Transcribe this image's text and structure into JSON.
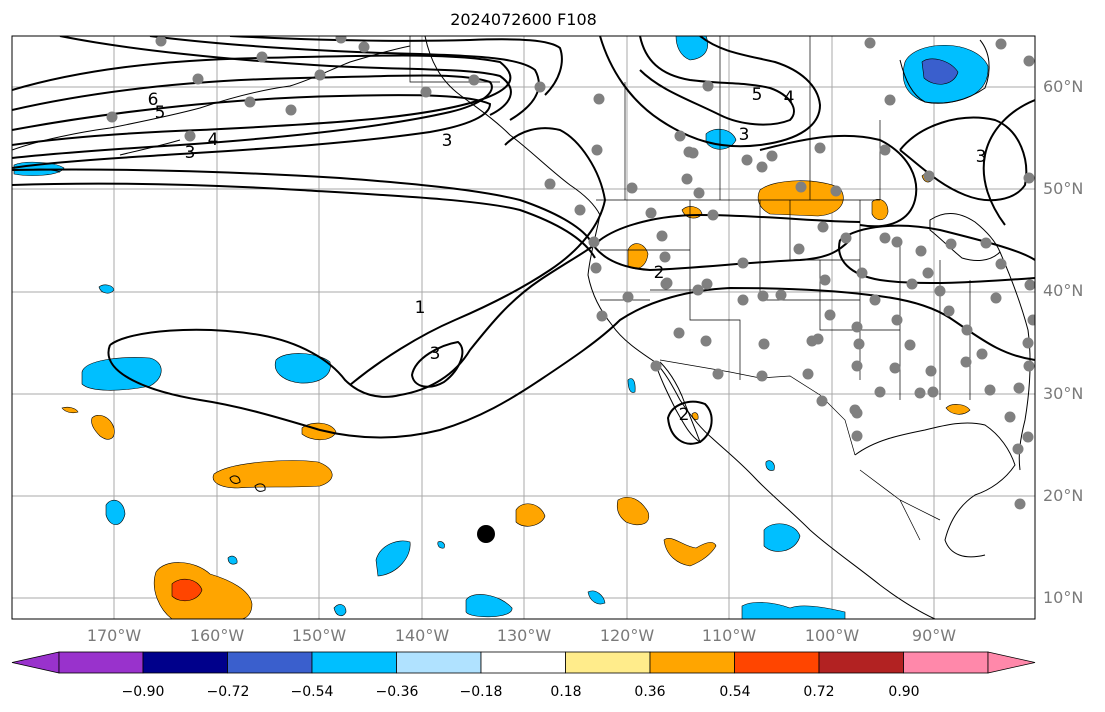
{
  "title": "2024072600 F108",
  "map": {
    "lat_labels": [
      "60°N",
      "50°N",
      "40°N",
      "30°N",
      "20°N",
      "10°N"
    ],
    "lon_labels": [
      "170°W",
      "160°W",
      "150°W",
      "140°W",
      "130°W",
      "120°W",
      "110°W",
      "100°W",
      "90°W"
    ],
    "contour_labels": [
      "6",
      "5",
      "4",
      "3",
      "3",
      "5",
      "4",
      "3",
      "3",
      "2",
      "1",
      "3",
      "2"
    ],
    "colors": {
      "grid": "#a8a8a8",
      "contour": "#000000",
      "land_outline": "#000000",
      "station": "#808080",
      "storm_marker": "#000000"
    }
  },
  "colorbar": {
    "ticks": [
      "−0.90",
      "−0.72",
      "−0.54",
      "−0.36",
      "−0.18",
      "0.18",
      "0.36",
      "0.54",
      "0.72",
      "0.90"
    ],
    "colors": [
      "#9932cc",
      "#00008b",
      "#3a5fcd",
      "#00bfff",
      "#b0e2ff",
      "#ffffff",
      "#ffec8b",
      "#ffa500",
      "#ff4500",
      "#b22222",
      "#ff88aa"
    ]
  }
}
